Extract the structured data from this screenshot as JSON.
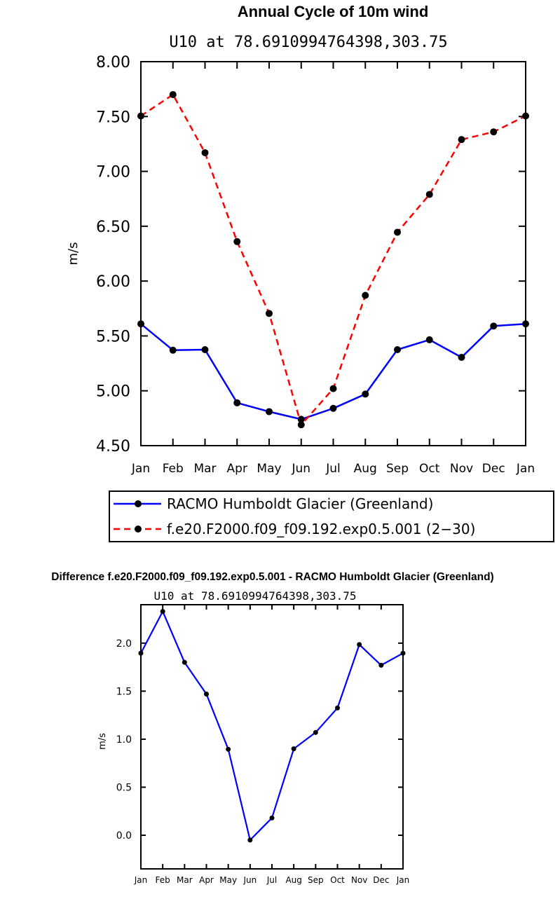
{
  "chart_data": [
    {
      "type": "line",
      "title": "Annual Cycle of 10m wind",
      "subtitle": "U10 at 78.6910994764398,303.75",
      "ylabel": "m/s",
      "xlabel": "",
      "ylim": [
        4.5,
        8.0
      ],
      "yticks": [
        "4.50",
        "5.00",
        "5.50",
        "6.00",
        "6.50",
        "7.00",
        "7.50",
        "8.00"
      ],
      "categories": [
        "Jan",
        "Feb",
        "Mar",
        "Apr",
        "May",
        "Jun",
        "Jul",
        "Aug",
        "Sep",
        "Oct",
        "Nov",
        "Dec",
        "Jan"
      ],
      "legend_position": "below",
      "series": [
        {
          "name": "RACMO Humboldt Glacier (Greenland)",
          "color": "#0000ff",
          "dash": "solid",
          "values": [
            5.61,
            5.37,
            5.375,
            4.89,
            4.81,
            4.74,
            4.84,
            4.97,
            5.375,
            5.465,
            5.305,
            5.59,
            5.61
          ]
        },
        {
          "name": "f.e20.F2000.f09_f09.192.exp0.5.001 (2−30)",
          "color": "#ff0000",
          "dash": "dashed",
          "values": [
            7.505,
            7.7,
            7.17,
            6.36,
            5.705,
            4.69,
            5.02,
            5.87,
            6.445,
            6.79,
            7.29,
            7.36,
            7.505
          ]
        }
      ]
    },
    {
      "type": "line",
      "title": "Difference f.e20.F2000.f09_f09.192.exp0.5.001 - RACMO Humboldt Glacier (Greenland)",
      "subtitle": "U10 at 78.6910994764398,303.75",
      "ylabel": "m/s",
      "xlabel": "",
      "ylim": [
        -0.35,
        2.4
      ],
      "yticks": [
        "0.0",
        "0.5",
        "1.0",
        "1.5",
        "2.0"
      ],
      "categories": [
        "Jan",
        "Feb",
        "Mar",
        "Apr",
        "May",
        "Jun",
        "Jul",
        "Aug",
        "Sep",
        "Oct",
        "Nov",
        "Dec",
        "Jan"
      ],
      "series": [
        {
          "name": "Difference",
          "color": "#0000ff",
          "dash": "solid",
          "values": [
            1.895,
            2.33,
            1.8,
            1.47,
            0.895,
            -0.05,
            0.18,
            0.9,
            1.07,
            1.325,
            1.985,
            1.77,
            1.895
          ]
        }
      ]
    }
  ]
}
